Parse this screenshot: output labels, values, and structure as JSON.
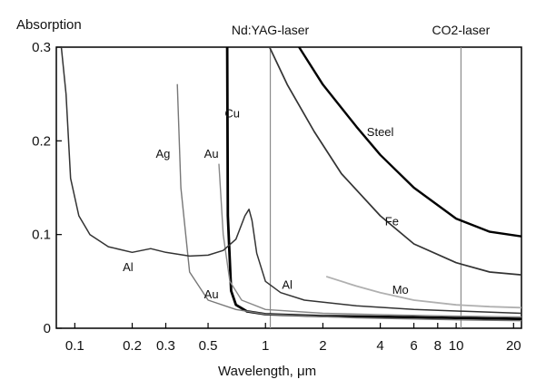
{
  "chart_data": {
    "type": "line",
    "title": "",
    "xlabel": "Wavelength,  μm",
    "ylabel": "Absorption",
    "x_scale": "log",
    "xlim": [
      0.08,
      22
    ],
    "ylim": [
      0,
      0.3
    ],
    "x_ticks": [
      {
        "value": 0.1,
        "label": "0.1"
      },
      {
        "value": 0.2,
        "label": "0.2"
      },
      {
        "value": 0.3,
        "label": "0.3"
      },
      {
        "value": 0.5,
        "label": "0.5"
      },
      {
        "value": 1,
        "label": "1"
      },
      {
        "value": 2,
        "label": "2"
      },
      {
        "value": 4,
        "label": "4"
      },
      {
        "value": 6,
        "label": "6"
      },
      {
        "value": 8,
        "label": "8"
      },
      {
        "value": 10,
        "label": "10"
      },
      {
        "value": 20,
        "label": "20"
      }
    ],
    "y_ticks": [
      {
        "value": 0,
        "label": "0"
      },
      {
        "value": 0.1,
        "label": "0.1"
      },
      {
        "value": 0.2,
        "label": "0.2"
      },
      {
        "value": 0.3,
        "label": "0.3"
      }
    ],
    "grid": false,
    "reference_lines": [
      {
        "x": 1.06,
        "label": "Nd:YAG-laser"
      },
      {
        "x": 10.6,
        "label": "CO2-laser"
      }
    ],
    "series": [
      {
        "name": "Steel",
        "color": "#000000",
        "width": 2.4,
        "points": [
          [
            1.5,
            0.3
          ],
          [
            2,
            0.26
          ],
          [
            3,
            0.215
          ],
          [
            4,
            0.185
          ],
          [
            6,
            0.15
          ],
          [
            10,
            0.117
          ],
          [
            15,
            0.103
          ],
          [
            22,
            0.098
          ]
        ]
      },
      {
        "name": "Fe",
        "color": "#333333",
        "width": 1.7,
        "points": [
          [
            1.05,
            0.3
          ],
          [
            1.3,
            0.26
          ],
          [
            1.8,
            0.21
          ],
          [
            2.5,
            0.165
          ],
          [
            4,
            0.12
          ],
          [
            6,
            0.09
          ],
          [
            10,
            0.07
          ],
          [
            15,
            0.06
          ],
          [
            22,
            0.057
          ]
        ]
      },
      {
        "name": "Mo",
        "color": "#b0b0b0",
        "width": 1.8,
        "points": [
          [
            2.1,
            0.055
          ],
          [
            3,
            0.045
          ],
          [
            4,
            0.038
          ],
          [
            6,
            0.03
          ],
          [
            10,
            0.025
          ],
          [
            15,
            0.023
          ],
          [
            22,
            0.022
          ]
        ]
      },
      {
        "name": "Cu",
        "color": "#000000",
        "width": 2.8,
        "points": [
          [
            0.63,
            0.3
          ],
          [
            0.635,
            0.12
          ],
          [
            0.66,
            0.04
          ],
          [
            0.7,
            0.025
          ],
          [
            0.8,
            0.018
          ],
          [
            1,
            0.015
          ],
          [
            2,
            0.013
          ],
          [
            5,
            0.012
          ],
          [
            10,
            0.011
          ],
          [
            22,
            0.01
          ]
        ]
      },
      {
        "name": "Au",
        "color": "#888888",
        "width": 1.4,
        "points": [
          [
            0.57,
            0.175
          ],
          [
            0.6,
            0.1
          ],
          [
            0.65,
            0.05
          ],
          [
            0.75,
            0.03
          ],
          [
            1,
            0.02
          ],
          [
            2,
            0.016
          ],
          [
            5,
            0.014
          ],
          [
            10,
            0.013
          ],
          [
            22,
            0.012
          ]
        ]
      },
      {
        "name": "Ag",
        "color": "#777777",
        "width": 1.4,
        "points": [
          [
            0.345,
            0.26
          ],
          [
            0.36,
            0.15
          ],
          [
            0.4,
            0.06
          ],
          [
            0.5,
            0.03
          ],
          [
            0.7,
            0.02
          ],
          [
            1,
            0.015
          ],
          [
            3,
            0.011
          ],
          [
            10,
            0.009
          ],
          [
            22,
            0.008
          ]
        ]
      },
      {
        "name": "Al",
        "color": "#333333",
        "width": 1.5,
        "points": [
          [
            0.085,
            0.3
          ],
          [
            0.09,
            0.25
          ],
          [
            0.095,
            0.16
          ],
          [
            0.105,
            0.12
          ],
          [
            0.12,
            0.1
          ],
          [
            0.15,
            0.087
          ],
          [
            0.2,
            0.081
          ],
          [
            0.25,
            0.085
          ],
          [
            0.3,
            0.081
          ],
          [
            0.4,
            0.077
          ],
          [
            0.5,
            0.078
          ],
          [
            0.6,
            0.083
          ],
          [
            0.7,
            0.095
          ],
          [
            0.78,
            0.12
          ],
          [
            0.82,
            0.127
          ],
          [
            0.85,
            0.115
          ],
          [
            0.9,
            0.08
          ],
          [
            1,
            0.05
          ],
          [
            1.2,
            0.038
          ],
          [
            1.6,
            0.03
          ],
          [
            3,
            0.024
          ],
          [
            6,
            0.02
          ],
          [
            22,
            0.016
          ]
        ]
      }
    ],
    "annotations": [
      {
        "text": "Steel",
        "x": 4,
        "y": 0.205
      },
      {
        "text": "Fe",
        "x": 4.6,
        "y": 0.11
      },
      {
        "text": "Mo",
        "x": 5.1,
        "y": 0.037
      },
      {
        "text": "Cu",
        "x": 0.67,
        "y": 0.225
      },
      {
        "text": "Au",
        "x": 0.52,
        "y": 0.182
      },
      {
        "text": "Ag",
        "x": 0.29,
        "y": 0.182
      },
      {
        "text": "Au",
        "x": 0.52,
        "y": 0.032
      },
      {
        "text": "Al",
        "x": 0.19,
        "y": 0.061
      },
      {
        "text": "Al",
        "x": 1.3,
        "y": 0.042
      }
    ]
  }
}
